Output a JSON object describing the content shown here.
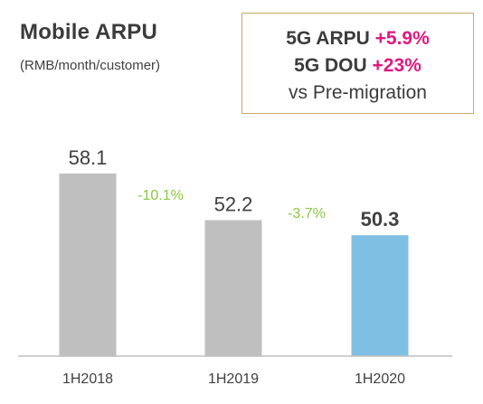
{
  "header": {
    "title": "Mobile ARPU",
    "subtitle": "(RMB/month/customer)"
  },
  "callout": {
    "row1_label": "5G ARPU",
    "row1_value": "+5.9%",
    "row2_label": "5G DOU",
    "row2_value": "+23%",
    "row3": "vs Pre-migration"
  },
  "chart_data": {
    "type": "bar",
    "title": "Mobile ARPU",
    "ylabel": "(RMB/month/customer)",
    "categories": [
      "1H2018",
      "1H2019",
      "1H2020"
    ],
    "values": [
      58.1,
      52.2,
      50.3
    ],
    "value_labels": [
      "58.1",
      "52.2",
      "50.3"
    ],
    "bar_colors": [
      "#bfbfbf",
      "#bfbfbf",
      "#7fbfe3"
    ],
    "highlighted_index": 2,
    "changes": [
      {
        "between": [
          "1H2018",
          "1H2019"
        ],
        "label": "-10.1%"
      },
      {
        "between": [
          "1H2019",
          "1H2020"
        ],
        "label": "-3.7%"
      }
    ],
    "change_color": "#8cc63f",
    "ylim": [
      0,
      60
    ],
    "grid": false
  }
}
